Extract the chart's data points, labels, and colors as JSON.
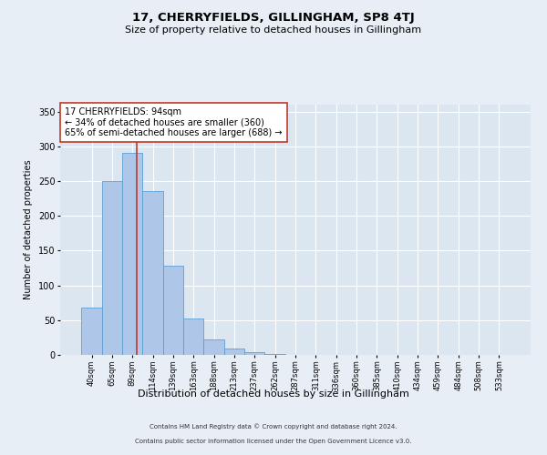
{
  "title": "17, CHERRYFIELDS, GILLINGHAM, SP8 4TJ",
  "subtitle": "Size of property relative to detached houses in Gillingham",
  "xlabel": "Distribution of detached houses by size in Gillingham",
  "ylabel": "Number of detached properties",
  "bar_labels": [
    "40sqm",
    "65sqm",
    "89sqm",
    "114sqm",
    "139sqm",
    "163sqm",
    "188sqm",
    "213sqm",
    "237sqm",
    "262sqm",
    "287sqm",
    "311sqm",
    "336sqm",
    "360sqm",
    "385sqm",
    "410sqm",
    "434sqm",
    "459sqm",
    "484sqm",
    "508sqm",
    "533sqm"
  ],
  "bar_values": [
    68,
    250,
    290,
    236,
    128,
    52,
    22,
    9,
    4,
    1,
    0,
    0,
    0,
    0,
    0,
    0,
    0,
    0,
    0,
    0,
    0
  ],
  "bar_color": "#aec6e8",
  "bar_edge_color": "#5a9fd4",
  "ylim": [
    0,
    360
  ],
  "yticks": [
    0,
    50,
    100,
    150,
    200,
    250,
    300,
    350
  ],
  "property_label": "17 CHERRYFIELDS: 94sqm",
  "annotation_line1": "← 34% of detached houses are smaller (360)",
  "annotation_line2": "65% of semi-detached houses are larger (688) →",
  "vline_color": "#c0392b",
  "annotation_box_color": "#ffffff",
  "annotation_box_edge": "#c0392b",
  "footer_line1": "Contains HM Land Registry data © Crown copyright and database right 2024.",
  "footer_line2": "Contains public sector information licensed under the Open Government Licence v3.0.",
  "background_color": "#e8eef5",
  "plot_bg_color": "#dce6f0",
  "title_fontsize": 9.5,
  "subtitle_fontsize": 8,
  "xlabel_fontsize": 8,
  "ylabel_fontsize": 7,
  "xtick_fontsize": 6,
  "ytick_fontsize": 7,
  "footer_fontsize": 5,
  "annot_fontsize": 7
}
